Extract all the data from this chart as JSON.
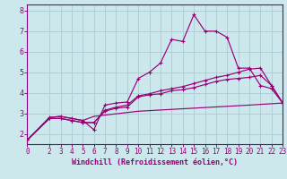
{
  "xlabel": "Windchill (Refroidissement éolien,°C)",
  "bg_color": "#cce8ec",
  "grid_color": "#aaccd4",
  "line_color": "#990077",
  "spine_color": "#880088",
  "xlim": [
    0,
    23
  ],
  "ylim": [
    1.5,
    8.3
  ],
  "xticks": [
    0,
    2,
    3,
    4,
    5,
    6,
    7,
    8,
    9,
    10,
    11,
    12,
    13,
    14,
    15,
    16,
    17,
    18,
    19,
    20,
    21,
    22,
    23
  ],
  "yticks": [
    2,
    3,
    4,
    5,
    6,
    7,
    8
  ],
  "line1_x": [
    0,
    2,
    3,
    4,
    5,
    6,
    7,
    8,
    9,
    10,
    11,
    12,
    13,
    14,
    15,
    16,
    17,
    18,
    19,
    20,
    21,
    22,
    23
  ],
  "line1_y": [
    1.7,
    2.8,
    2.85,
    2.75,
    2.65,
    2.2,
    3.4,
    3.5,
    3.55,
    4.7,
    5.0,
    5.45,
    6.6,
    6.5,
    7.8,
    7.0,
    7.0,
    6.7,
    5.2,
    5.2,
    4.35,
    4.2,
    3.5
  ],
  "line2_x": [
    0,
    2,
    3,
    4,
    5,
    6,
    7,
    8,
    9,
    10,
    11,
    12,
    13,
    14,
    15,
    16,
    17,
    18,
    19,
    20,
    21,
    22,
    23
  ],
  "line2_y": [
    1.7,
    2.75,
    2.75,
    2.65,
    2.55,
    2.55,
    3.1,
    3.25,
    3.3,
    3.8,
    3.9,
    3.95,
    4.1,
    4.15,
    4.25,
    4.4,
    4.55,
    4.65,
    4.7,
    4.75,
    4.85,
    4.35,
    3.5
  ],
  "line3_x": [
    0,
    2,
    3,
    4,
    5,
    6,
    7,
    8,
    9,
    10,
    11,
    12,
    13,
    14,
    15,
    16,
    17,
    18,
    19,
    20,
    21,
    22,
    23
  ],
  "line3_y": [
    1.7,
    2.75,
    2.75,
    2.65,
    2.55,
    2.55,
    3.15,
    3.3,
    3.4,
    3.85,
    3.95,
    4.1,
    4.2,
    4.3,
    4.45,
    4.6,
    4.75,
    4.85,
    5.0,
    5.15,
    5.2,
    4.35,
    3.5
  ],
  "line4_x": [
    0,
    2,
    3,
    4,
    5,
    6,
    10,
    15,
    20,
    23
  ],
  "line4_y": [
    1.7,
    2.8,
    2.85,
    2.75,
    2.65,
    2.85,
    3.1,
    3.25,
    3.4,
    3.5
  ],
  "xlabel_fontsize": 6,
  "tick_fontsize": 5.5
}
